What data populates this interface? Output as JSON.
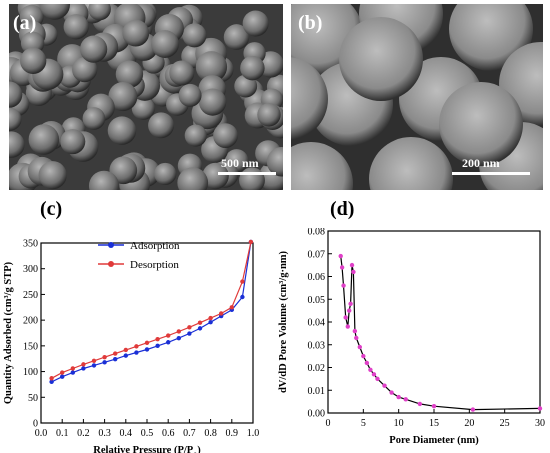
{
  "panels": {
    "a": {
      "letter": "(a)",
      "scalebar": "500 nm"
    },
    "b": {
      "letter": "(b)",
      "scalebar": "200 nm"
    },
    "c": {
      "letter": "(c)"
    },
    "d": {
      "letter": "(d)"
    }
  },
  "chart_data": [
    {
      "type": "line",
      "xlabel": "Relative Pressure (P/P0)",
      "ylabel": "Quantity Adsorbed (cm³/g STP)",
      "xlim": [
        0.0,
        1.0
      ],
      "ylim": [
        0,
        350
      ],
      "xticks": [
        "0.0",
        "0.1",
        "0.2",
        "0.3",
        "0.4",
        "0.5",
        "0.6",
        "0.7",
        "0.8",
        "0.9",
        "1.0"
      ],
      "yticks": [
        "0",
        "50",
        "100",
        "150",
        "200",
        "250",
        "300",
        "350"
      ],
      "legend": "top-left",
      "series": [
        {
          "name": "Adsorption",
          "color": "#1a2fd6",
          "x": [
            0.05,
            0.1,
            0.15,
            0.2,
            0.25,
            0.3,
            0.35,
            0.4,
            0.45,
            0.5,
            0.55,
            0.6,
            0.65,
            0.7,
            0.75,
            0.8,
            0.85,
            0.9,
            0.95,
            0.99
          ],
          "y": [
            80,
            90,
            98,
            106,
            112,
            118,
            124,
            131,
            137,
            143,
            150,
            157,
            165,
            174,
            184,
            196,
            208,
            220,
            245,
            352
          ]
        },
        {
          "name": "Desorption",
          "color": "#e03a3a",
          "x": [
            0.05,
            0.1,
            0.15,
            0.2,
            0.25,
            0.3,
            0.35,
            0.4,
            0.45,
            0.5,
            0.55,
            0.6,
            0.65,
            0.7,
            0.75,
            0.8,
            0.85,
            0.9,
            0.95,
            0.99
          ],
          "y": [
            87,
            98,
            106,
            114,
            121,
            128,
            135,
            142,
            149,
            156,
            163,
            170,
            178,
            186,
            195,
            204,
            213,
            225,
            275,
            352
          ]
        }
      ]
    },
    {
      "type": "line",
      "xlabel": "Pore Diameter (nm)",
      "ylabel": "dV/dD Pore Volume (cm³/g·nm)",
      "xlim": [
        0,
        30
      ],
      "ylim": [
        0,
        0.08
      ],
      "xticks": [
        "0",
        "5",
        "10",
        "15",
        "20",
        "25",
        "30"
      ],
      "yticks": [
        "0.00",
        "0.01",
        "0.02",
        "0.03",
        "0.04",
        "0.05",
        "0.06",
        "0.07",
        "0.08"
      ],
      "series": [
        {
          "color": "#e040c8",
          "x": [
            1.8,
            2.0,
            2.2,
            2.5,
            2.8,
            3.0,
            3.2,
            3.4,
            3.6,
            3.8,
            4.0,
            4.5,
            5.0,
            5.5,
            6.0,
            6.5,
            7.0,
            8.0,
            9.0,
            10.0,
            11.0,
            13.0,
            15.0,
            20.5,
            30.0
          ],
          "y": [
            0.069,
            0.064,
            0.056,
            0.042,
            0.038,
            0.045,
            0.048,
            0.065,
            0.062,
            0.036,
            0.033,
            0.029,
            0.025,
            0.022,
            0.019,
            0.017,
            0.015,
            0.012,
            0.009,
            0.007,
            0.006,
            0.004,
            0.003,
            0.0015,
            0.002
          ]
        }
      ]
    }
  ]
}
